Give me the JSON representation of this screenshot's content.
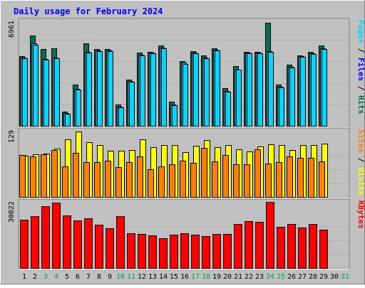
{
  "title": "Daily usage for February 2024",
  "colors": {
    "background": "#c0c0c0",
    "title": "#0000ff",
    "hits": "#007050",
    "files": "#00c0ff",
    "pages": "#00d8ff",
    "visits": "#ffff00",
    "sites": "#ff8000",
    "kbytes": "#ff0000",
    "weekend_day": "#00a050",
    "weekday": "#000000",
    "bar_outline": "#000000"
  },
  "days": [
    "1",
    "2",
    "3",
    "4",
    "5",
    "6",
    "7",
    "8",
    "9",
    "10",
    "11",
    "12",
    "13",
    "14",
    "15",
    "16",
    "17",
    "18",
    "19",
    "20",
    "21",
    "22",
    "23",
    "24",
    "25",
    "26",
    "27",
    "28",
    "29",
    "30",
    "31"
  ],
  "weekend_days": [
    "3",
    "4",
    "10",
    "11",
    "17",
    "18",
    "24",
    "25",
    "31"
  ],
  "chart_data": [
    {
      "type": "bar",
      "panel": "top",
      "y_max_label": "6961",
      "ylim": [
        0,
        6961
      ],
      "legend": [
        "Hits",
        "Files",
        "Pages"
      ],
      "categories": [
        "1",
        "2",
        "3",
        "4",
        "5",
        "6",
        "7",
        "8",
        "9",
        "10",
        "11",
        "12",
        "13",
        "14",
        "15",
        "16",
        "17",
        "18",
        "19",
        "20",
        "21",
        "22",
        "23",
        "24",
        "25",
        "26",
        "27",
        "28",
        "29",
        "30",
        "31"
      ],
      "series": [
        {
          "name": "Hits",
          "values": [
            4640,
            6020,
            5110,
            5170,
            1000,
            2760,
            5500,
            5110,
            5110,
            1470,
            3090,
            4880,
            4960,
            5350,
            1640,
            4340,
            5000,
            4690,
            5190,
            2520,
            4010,
            4960,
            4960,
            6890,
            2770,
            4100,
            4720,
            4960,
            5350,
            0,
            0
          ]
        },
        {
          "name": "Files",
          "values": [
            4560,
            5510,
            4450,
            4560,
            890,
            2480,
            4960,
            5040,
            5040,
            1310,
            3010,
            4770,
            4880,
            5230,
            1460,
            4210,
            4900,
            4560,
            5080,
            2330,
            3780,
            4880,
            4880,
            4990,
            2640,
            3940,
            4640,
            4830,
            5190,
            0,
            0
          ]
        },
        {
          "name": "Pages",
          "values": [
            4530,
            5420,
            4420,
            4510,
            850,
            2440,
            4890,
            4990,
            4990,
            1280,
            2960,
            4720,
            4830,
            5160,
            1430,
            4160,
            4850,
            4510,
            5030,
            2290,
            3740,
            4830,
            4830,
            4950,
            2610,
            3900,
            4600,
            4790,
            5150,
            0,
            0
          ]
        }
      ]
    },
    {
      "type": "bar",
      "panel": "middle",
      "y_max_label": "129",
      "ylim": [
        0,
        129
      ],
      "legend": [
        "Visits",
        "Sites"
      ],
      "categories": [
        "1",
        "2",
        "3",
        "4",
        "5",
        "6",
        "7",
        "8",
        "9",
        "10",
        "11",
        "12",
        "13",
        "14",
        "15",
        "16",
        "17",
        "18",
        "19",
        "20",
        "21",
        "22",
        "23",
        "24",
        "25",
        "26",
        "27",
        "28",
        "29",
        "30",
        "31"
      ],
      "series": [
        {
          "name": "Visits",
          "values": [
            81,
            84,
            85,
            95,
            112,
            127,
            107,
            102,
            91,
            90,
            92,
            113,
            98,
            101,
            101,
            88,
            100,
            111,
            98,
            101,
            93,
            89,
            99,
            103,
            101,
            92,
            101,
            102,
            104,
            0,
            0
          ]
        },
        {
          "name": "Sites",
          "values": [
            83,
            79,
            84,
            92,
            61,
            86,
            69,
            68,
            72,
            59,
            68,
            79,
            55,
            61,
            64,
            71,
            67,
            96,
            70,
            83,
            64,
            65,
            94,
            66,
            68,
            80,
            77,
            77,
            70,
            0,
            0
          ]
        }
      ]
    },
    {
      "type": "bar",
      "panel": "bottom",
      "y_max_label": "30022",
      "ylim": [
        0,
        30022
      ],
      "legend": [
        "KBytes"
      ],
      "categories": [
        "1",
        "2",
        "3",
        "4",
        "5",
        "6",
        "7",
        "8",
        "9",
        "10",
        "11",
        "12",
        "13",
        "14",
        "15",
        "16",
        "17",
        "18",
        "19",
        "20",
        "21",
        "22",
        "23",
        "24",
        "25",
        "26",
        "27",
        "28",
        "29",
        "30",
        "31"
      ],
      "series": [
        {
          "name": "KBytes",
          "values": [
            22000,
            23700,
            28100,
            29700,
            24100,
            21700,
            22700,
            19700,
            18100,
            23600,
            16100,
            15500,
            14900,
            13700,
            15300,
            16100,
            15300,
            14700,
            15800,
            15700,
            20200,
            21400,
            21200,
            30000,
            18700,
            20100,
            18500,
            20100,
            17600,
            0,
            0
          ]
        }
      ]
    }
  ]
}
